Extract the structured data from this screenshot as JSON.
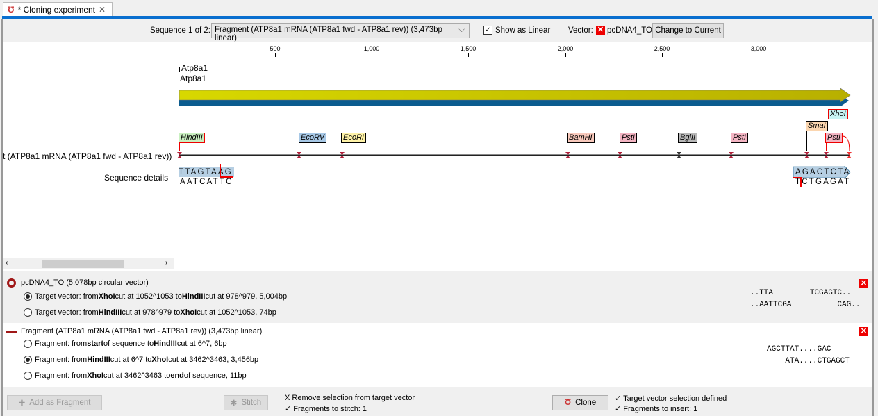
{
  "tab": {
    "title": "* Cloning experiment",
    "icon": "cloning-icon"
  },
  "toolbar": {
    "sequence_label": "Sequence 1 of 2:",
    "sequence_value": "Fragment (ATP8a1 mRNA (ATP8a1 fwd - ATP8a1 rev)) (3,473bp linear)",
    "show_linear_label": "Show as Linear",
    "show_linear_checked": true,
    "vector_label": "Vector:",
    "vector_name": "pcDNA4_TO",
    "change_button": "Change to Current"
  },
  "ruler": {
    "ticks": [
      "500",
      "1,000",
      "1,500",
      "2,000",
      "2,500",
      "3,000"
    ]
  },
  "features": {
    "label1": "Atp8a1",
    "label2": "Atp8a1",
    "colors": {
      "forward": "#c8c800",
      "reverse": "#0b5c8f"
    }
  },
  "sequence_name": "t (ATP8a1 mRNA (ATP8a1 fwd - ATP8a1 rev))",
  "sites": [
    {
      "name": "HindIII",
      "bg": "#c9f0c0",
      "border": "#e00"
    },
    {
      "name": "EcoRV",
      "bg": "#a7c8e6",
      "border": "#000"
    },
    {
      "name": "EcoRI",
      "bg": "#fff3a8",
      "border": "#000"
    },
    {
      "name": "BamHI",
      "bg": "#f8c9bc",
      "border": "#000"
    },
    {
      "name": "PstI",
      "bg": "#f4b5c3",
      "border": "#000"
    },
    {
      "name": "BglII",
      "bg": "#b8b8b8",
      "border": "#000"
    },
    {
      "name": "PstI",
      "bg": "#f4b5c3",
      "border": "#000"
    },
    {
      "name": "SmaI",
      "bg": "#fbd6b0",
      "border": "#000"
    },
    {
      "name": "PstI",
      "bg": "#f4b5c3",
      "border": "#e00"
    },
    {
      "name": "XhoI",
      "bg": "#c8f4f4",
      "border": "#e00"
    }
  ],
  "details": {
    "label": "Sequence details",
    "left_top": "TTAGTAAG",
    "left_bottom": "AATCATTC",
    "right_top": "AGACTCTA",
    "right_bottom": "TCTGAGAT"
  },
  "vector": {
    "title": "pcDNA4_TO (5,078bp circular vector)",
    "options": [
      {
        "parts": [
          "Target vector: from ",
          "XhoI",
          " cut at 1052^1053 to ",
          "HindIII",
          " cut at 978^979, 5,004bp"
        ],
        "selected": true
      },
      {
        "parts": [
          "Target vector: from ",
          "HindIII",
          " cut at 978^979 to ",
          "XhoI",
          " cut at 1052^1053, 74bp"
        ],
        "selected": false
      }
    ],
    "seq_top": "..TTA        TCGAGTC..",
    "seq_bottom": "..AATTCGA          CAG.."
  },
  "fragment": {
    "title": "Fragment (ATP8a1 mRNA (ATP8a1 fwd - ATP8a1 rev)) (3,473bp linear)",
    "options": [
      {
        "parts": [
          "Fragment: from ",
          "start",
          " of sequence to ",
          "HindIII",
          " cut at 6^7, 6bp"
        ],
        "selected": false
      },
      {
        "parts": [
          "Fragment: from ",
          "HindIII",
          " cut at 6^7 to ",
          "XhoI",
          " cut at 3462^3463, 3,456bp"
        ],
        "selected": true
      },
      {
        "parts": [
          "Fragment: from ",
          "XhoI",
          " cut at 3462^3463 to ",
          "end",
          " of sequence, 11bp"
        ],
        "selected": false
      }
    ],
    "seq_top": "AGCTTAT....GAC",
    "seq_bottom": "    ATA....CTGAGCT"
  },
  "footer": {
    "add_fragment": "Add as Fragment",
    "stitch": "Stitch",
    "stitch_status1": "X Remove selection from target vector",
    "stitch_status2": "✓ Fragments to stitch: 1",
    "clone": "Clone",
    "clone_status1": "✓ Target vector selection defined",
    "clone_status2": "✓ Fragments to insert: 1"
  }
}
